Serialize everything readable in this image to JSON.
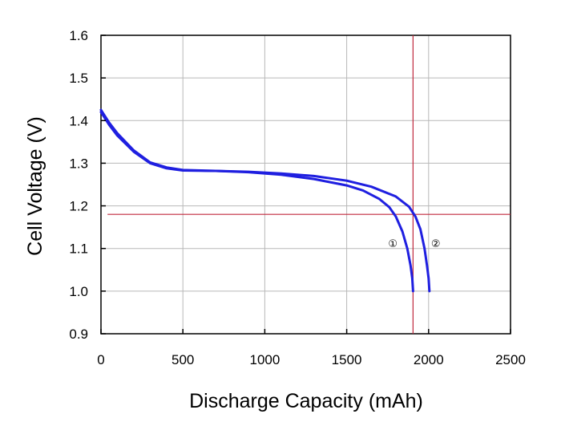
{
  "chart_data": {
    "type": "line",
    "title": "",
    "xlabel": "Discharge Capacity (mAh)",
    "ylabel": "Cell Voltage (V)",
    "xlim": [
      0,
      2500
    ],
    "ylim": [
      0.9,
      1.6
    ],
    "x_ticks": [
      "0",
      "500",
      "1000",
      "1500",
      "2000",
      "2500"
    ],
    "y_ticks": [
      "0.9",
      "1.0",
      "1.1",
      "1.2",
      "1.3",
      "1.4",
      "1.5",
      "1.6"
    ],
    "grid": true,
    "series": [
      {
        "name": "①",
        "color": "#1f1fe0",
        "points": [
          [
            0,
            1.425
          ],
          [
            50,
            1.395
          ],
          [
            100,
            1.37
          ],
          [
            200,
            1.33
          ],
          [
            300,
            1.302
          ],
          [
            400,
            1.29
          ],
          [
            500,
            1.284
          ],
          [
            700,
            1.282
          ],
          [
            900,
            1.279
          ],
          [
            1100,
            1.273
          ],
          [
            1300,
            1.263
          ],
          [
            1500,
            1.248
          ],
          [
            1600,
            1.236
          ],
          [
            1700,
            1.216
          ],
          [
            1760,
            1.197
          ],
          [
            1800,
            1.175
          ],
          [
            1840,
            1.14
          ],
          [
            1870,
            1.1
          ],
          [
            1890,
            1.06
          ],
          [
            1900,
            1.03
          ],
          [
            1905,
            1.0
          ]
        ]
      },
      {
        "name": "②",
        "color": "#1f1fe0",
        "points": [
          [
            0,
            1.42
          ],
          [
            50,
            1.39
          ],
          [
            100,
            1.365
          ],
          [
            200,
            1.327
          ],
          [
            300,
            1.3
          ],
          [
            400,
            1.288
          ],
          [
            500,
            1.283
          ],
          [
            700,
            1.282
          ],
          [
            900,
            1.28
          ],
          [
            1100,
            1.276
          ],
          [
            1300,
            1.27
          ],
          [
            1500,
            1.259
          ],
          [
            1650,
            1.245
          ],
          [
            1800,
            1.222
          ],
          [
            1880,
            1.198
          ],
          [
            1920,
            1.175
          ],
          [
            1950,
            1.145
          ],
          [
            1975,
            1.1
          ],
          [
            1990,
            1.06
          ],
          [
            2000,
            1.03
          ],
          [
            2005,
            1.0
          ]
        ]
      }
    ],
    "reference_lines": {
      "color": "#c0283c",
      "vertical_x": 1905,
      "horizontal_y": 1.18
    }
  }
}
